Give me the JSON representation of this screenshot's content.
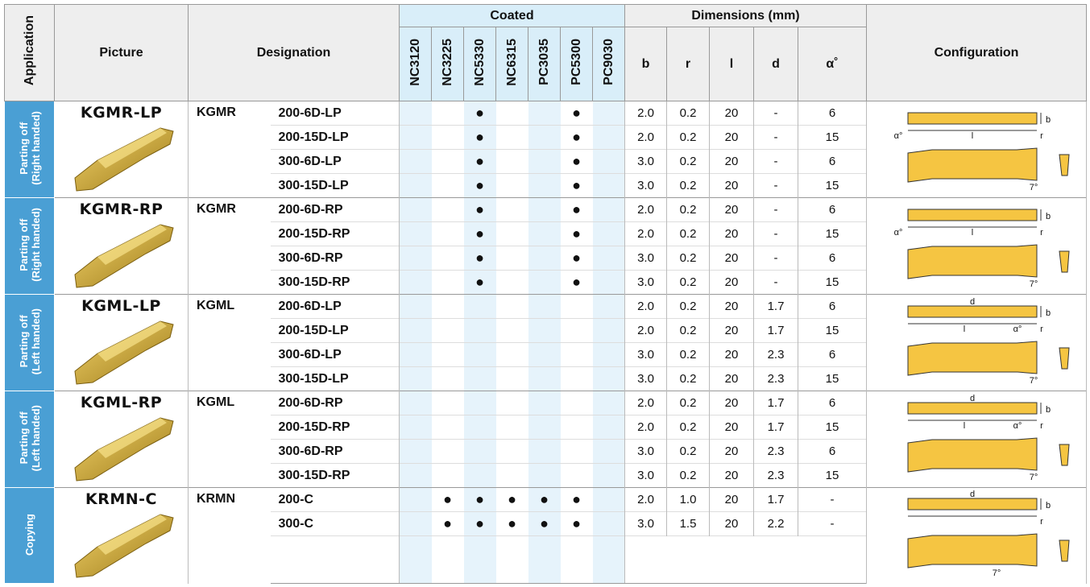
{
  "header": {
    "application": "Application",
    "picture": "Picture",
    "designation": "Designation",
    "coated": "Coated",
    "grades": [
      "NC3120",
      "NC3225",
      "NC5330",
      "NC6315",
      "PC3035",
      "PC5300",
      "PC9030"
    ],
    "dimensions": "Dimensions (mm)",
    "dims": [
      "b",
      "r",
      "l",
      "d",
      "α˚"
    ],
    "configuration": "Configuration"
  },
  "groups": [
    {
      "application": [
        "Parting off",
        "(Right handed)"
      ],
      "name": "KGMR-LP",
      "series": "KGMR",
      "config_labels": [
        "b",
        "α°",
        "l",
        "r",
        "7°"
      ],
      "rows": [
        {
          "code": "200-6D-LP",
          "marks": [
            null,
            null,
            "●",
            null,
            null,
            "●",
            null
          ],
          "dims": [
            "2.0",
            "0.2",
            "20",
            "-",
            "6"
          ]
        },
        {
          "code": "200-15D-LP",
          "marks": [
            null,
            null,
            "●",
            null,
            null,
            "●",
            null
          ],
          "dims": [
            "2.0",
            "0.2",
            "20",
            "-",
            "15"
          ]
        },
        {
          "code": "300-6D-LP",
          "marks": [
            null,
            null,
            "●",
            null,
            null,
            "●",
            null
          ],
          "dims": [
            "3.0",
            "0.2",
            "20",
            "-",
            "6"
          ]
        },
        {
          "code": "300-15D-LP",
          "marks": [
            null,
            null,
            "●",
            null,
            null,
            "●",
            null
          ],
          "dims": [
            "3.0",
            "0.2",
            "20",
            "-",
            "15"
          ]
        }
      ]
    },
    {
      "application": [
        "Parting off",
        "(Right handed)"
      ],
      "name": "KGMR-RP",
      "series": "KGMR",
      "config_labels": [
        "b",
        "α°",
        "l",
        "r",
        "7°"
      ],
      "rows": [
        {
          "code": "200-6D-RP",
          "marks": [
            null,
            null,
            "●",
            null,
            null,
            "●",
            null
          ],
          "dims": [
            "2.0",
            "0.2",
            "20",
            "-",
            "6"
          ]
        },
        {
          "code": "200-15D-RP",
          "marks": [
            null,
            null,
            "●",
            null,
            null,
            "●",
            null
          ],
          "dims": [
            "2.0",
            "0.2",
            "20",
            "-",
            "15"
          ]
        },
        {
          "code": "300-6D-RP",
          "marks": [
            null,
            null,
            "●",
            null,
            null,
            "●",
            null
          ],
          "dims": [
            "3.0",
            "0.2",
            "20",
            "-",
            "6"
          ]
        },
        {
          "code": "300-15D-RP",
          "marks": [
            null,
            null,
            "●",
            null,
            null,
            "●",
            null
          ],
          "dims": [
            "3.0",
            "0.2",
            "20",
            "-",
            "15"
          ]
        }
      ]
    },
    {
      "application": [
        "Parting off",
        "(Left handed)"
      ],
      "name": "KGML-LP",
      "series": "KGML",
      "config_labels": [
        "d",
        "b",
        "l",
        "α°",
        "r",
        "7°"
      ],
      "rows": [
        {
          "code": "200-6D-LP",
          "marks": [
            null,
            null,
            null,
            null,
            null,
            null,
            null
          ],
          "dims": [
            "2.0",
            "0.2",
            "20",
            "1.7",
            "6"
          ]
        },
        {
          "code": "200-15D-LP",
          "marks": [
            null,
            null,
            null,
            null,
            null,
            null,
            null
          ],
          "dims": [
            "2.0",
            "0.2",
            "20",
            "1.7",
            "15"
          ]
        },
        {
          "code": "300-6D-LP",
          "marks": [
            null,
            null,
            null,
            null,
            null,
            null,
            null
          ],
          "dims": [
            "3.0",
            "0.2",
            "20",
            "2.3",
            "6"
          ]
        },
        {
          "code": "300-15D-LP",
          "marks": [
            null,
            null,
            null,
            null,
            null,
            null,
            null
          ],
          "dims": [
            "3.0",
            "0.2",
            "20",
            "2.3",
            "15"
          ]
        }
      ]
    },
    {
      "application": [
        "Parting off",
        "(Left handed)"
      ],
      "name": "KGML-RP",
      "series": "KGML",
      "config_labels": [
        "d",
        "b",
        "l",
        "α°",
        "r",
        "7°"
      ],
      "rows": [
        {
          "code": "200-6D-RP",
          "marks": [
            null,
            null,
            null,
            null,
            null,
            null,
            null
          ],
          "dims": [
            "2.0",
            "0.2",
            "20",
            "1.7",
            "6"
          ]
        },
        {
          "code": "200-15D-RP",
          "marks": [
            null,
            null,
            null,
            null,
            null,
            null,
            null
          ],
          "dims": [
            "2.0",
            "0.2",
            "20",
            "1.7",
            "15"
          ]
        },
        {
          "code": "300-6D-RP",
          "marks": [
            null,
            null,
            null,
            null,
            null,
            null,
            null
          ],
          "dims": [
            "3.0",
            "0.2",
            "20",
            "2.3",
            "6"
          ]
        },
        {
          "code": "300-15D-RP",
          "marks": [
            null,
            null,
            null,
            null,
            null,
            null,
            null
          ],
          "dims": [
            "3.0",
            "0.2",
            "20",
            "2.3",
            "15"
          ]
        }
      ]
    },
    {
      "application": [
        "Copying"
      ],
      "name": "KRMN-C",
      "series": "KRMN",
      "config_labels": [
        "d",
        "b",
        "r",
        "7°"
      ],
      "rows": [
        {
          "code": "200-C",
          "marks": [
            null,
            "●",
            "●",
            "●",
            "●",
            "●",
            null
          ],
          "dims": [
            "2.0",
            "1.0",
            "20",
            "1.7",
            "-"
          ]
        },
        {
          "code": "300-C",
          "marks": [
            null,
            "●",
            "●",
            "●",
            "●",
            "●",
            null
          ],
          "dims": [
            "3.0",
            "1.5",
            "20",
            "2.2",
            "-"
          ]
        }
      ]
    }
  ]
}
